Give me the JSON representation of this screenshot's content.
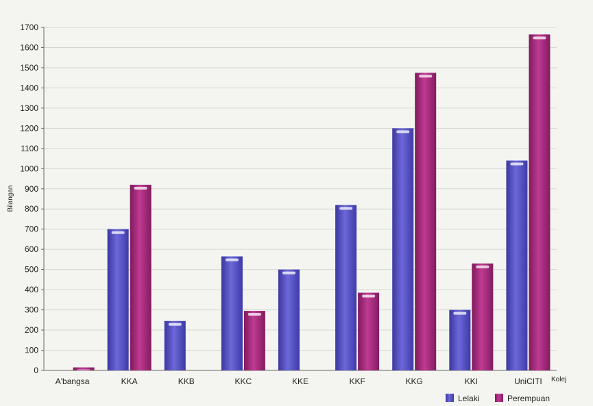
{
  "chart_data": {
    "type": "bar",
    "ylabel": "Bilangan",
    "xlabel": "Kolej",
    "ylim": [
      0,
      1700
    ],
    "ytick_step": 100,
    "grid": true,
    "legend_position": "bottom-right",
    "categories": [
      "A'bangsa",
      "KKA",
      "KKB",
      "KKC",
      "KKE",
      "KKF",
      "KKG",
      "KKI",
      "UniCITI"
    ],
    "series": [
      {
        "name": "Lelaki",
        "color": "#5a55c8",
        "values": [
          0,
          700,
          245,
          565,
          500,
          820,
          1200,
          300,
          1040
        ]
      },
      {
        "name": "Perempuan",
        "color": "#a8287e",
        "values": [
          15,
          920,
          0,
          295,
          0,
          385,
          1475,
          530,
          1665
        ]
      }
    ]
  }
}
